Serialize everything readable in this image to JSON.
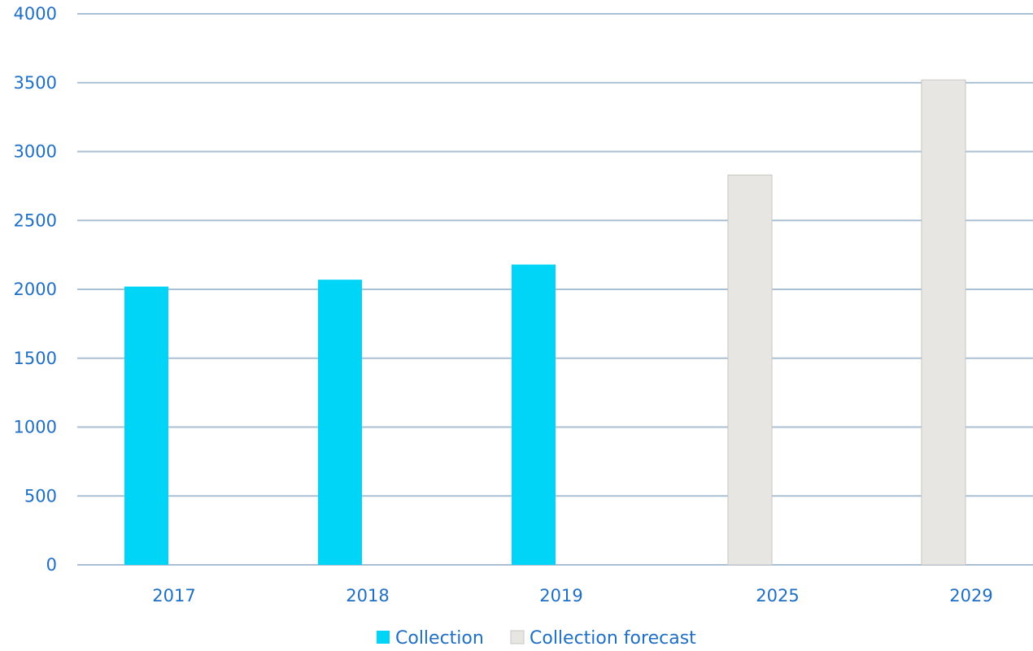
{
  "chart_data": {
    "type": "bar",
    "categories": [
      "2017",
      "2018",
      "2019",
      "2025",
      "2029"
    ],
    "series": [
      {
        "name": "Collection",
        "values": [
          2020,
          2070,
          2180,
          null,
          null
        ],
        "color": "#00d4f7"
      },
      {
        "name": "Collection forecast",
        "values": [
          null,
          null,
          null,
          2830,
          3520
        ],
        "color": "#e8e6e3"
      }
    ],
    "ylim": [
      0,
      4000
    ],
    "yticks": [
      0,
      500,
      1000,
      1500,
      2000,
      2500,
      3000,
      3500,
      4000
    ],
    "grid": true,
    "legend_position": "bottom",
    "colors": {
      "tick_text": "#1f6fc5",
      "grid": "#a9bfd3"
    }
  }
}
